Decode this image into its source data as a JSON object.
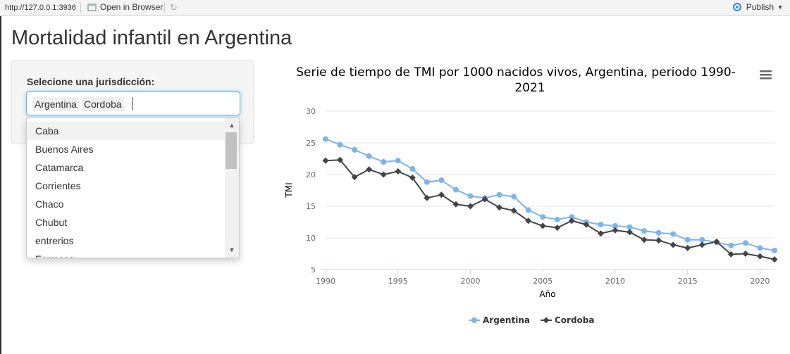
{
  "browser": {
    "url": "http://127.0.0.1:3936",
    "open_in_browser": "Open in Browser",
    "publish": "Publish"
  },
  "page": {
    "title": "Mortalidad infantil en Argentina"
  },
  "filter": {
    "label": "Selecione una jurisdicción:",
    "selected": [
      "Argentina",
      "Cordoba"
    ],
    "options": [
      "Caba",
      "Buenos Aires",
      "Catamarca",
      "Corrientes",
      "Chaco",
      "Chubut",
      "entrerios",
      "Formosa"
    ]
  },
  "colors": {
    "argentina": "#7cb5ec",
    "cordoba": "#434348",
    "grid": "#e6e6e6",
    "axis_text": "#666666",
    "title_text": "#333333"
  },
  "chart_data": {
    "type": "line",
    "title_line1": "Serie de tiempo de TMI por 1000 nacidos vivos, Argentina, periodo 1990-",
    "title_line2": "2021",
    "xlabel": "Año",
    "ylabel": "TMI",
    "xlim": [
      1990,
      2021
    ],
    "ylim": [
      5,
      30
    ],
    "x_ticks": [
      1990,
      1995,
      2000,
      2005,
      2010,
      2015,
      2020
    ],
    "y_ticks": [
      5,
      10,
      15,
      20,
      25,
      30
    ],
    "grid": true,
    "legend_position": "bottom-center",
    "x": [
      1990,
      1991,
      1992,
      1993,
      1994,
      1995,
      1996,
      1997,
      1998,
      1999,
      2000,
      2001,
      2002,
      2003,
      2004,
      2005,
      2006,
      2007,
      2008,
      2009,
      2010,
      2011,
      2012,
      2013,
      2014,
      2015,
      2016,
      2017,
      2018,
      2019,
      2020,
      2021
    ],
    "series": [
      {
        "name": "Argentina",
        "marker": "circle",
        "values": [
          25.6,
          24.7,
          23.9,
          22.9,
          22.0,
          22.2,
          20.9,
          18.8,
          19.1,
          17.6,
          16.6,
          16.3,
          16.8,
          16.5,
          14.4,
          13.3,
          12.9,
          13.3,
          12.5,
          12.1,
          11.9,
          11.7,
          11.1,
          10.8,
          10.6,
          9.7,
          9.7,
          9.3,
          8.8,
          9.2,
          8.4,
          8.0
        ]
      },
      {
        "name": "Cordoba",
        "marker": "diamond",
        "values": [
          22.2,
          22.3,
          19.6,
          20.8,
          20.0,
          20.5,
          19.5,
          16.3,
          16.8,
          15.3,
          15.0,
          16.1,
          14.8,
          14.3,
          12.7,
          11.9,
          11.6,
          12.7,
          12.1,
          10.7,
          11.2,
          10.9,
          9.7,
          9.6,
          8.9,
          8.4,
          8.9,
          9.4,
          7.4,
          7.5,
          7.1,
          6.6
        ]
      }
    ]
  }
}
